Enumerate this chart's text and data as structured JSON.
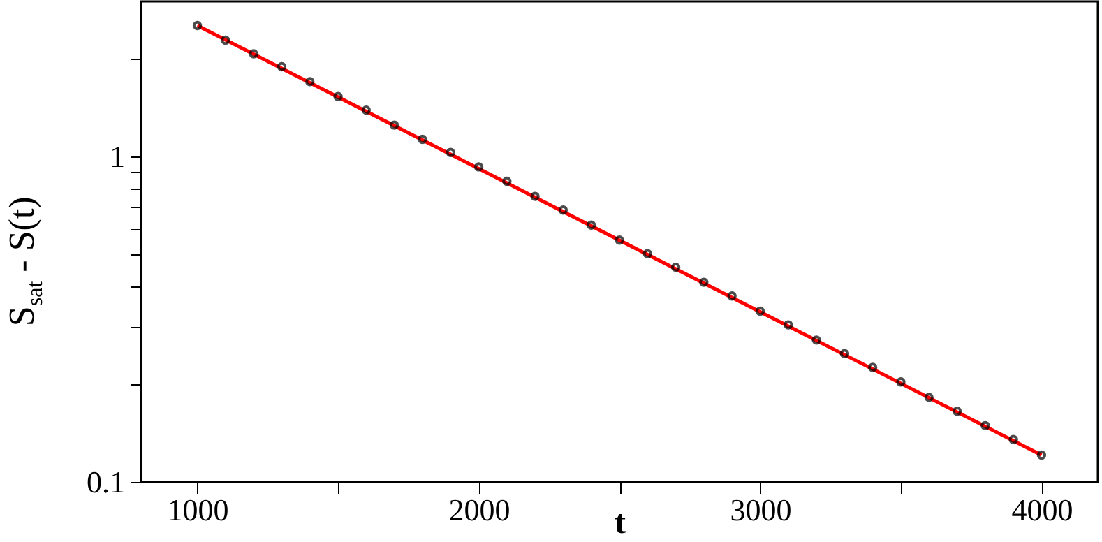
{
  "chart_data": {
    "type": "scatter",
    "xlabel": "t",
    "ylabel": "S$_{sat}$ - S(t)",
    "log": "y",
    "grid": false,
    "xlim": [
      800,
      4200
    ],
    "xticks": [
      1000,
      {
        "value": 1500,
        "label": null
      },
      2000,
      {
        "value": 2500,
        "label": null
      },
      3000,
      {
        "value": 3500,
        "label": null
      },
      4000
    ],
    "ylim": [
      0.1,
      3
    ],
    "yticks": [
      {
        "value": 0.1,
        "label": "0.1"
      },
      {
        "value": 0.2,
        "label": null
      },
      {
        "value": 0.3,
        "label": null
      },
      {
        "value": 0.4,
        "label": null
      },
      {
        "value": 0.5,
        "label": null
      },
      {
        "value": 0.6,
        "label": null
      },
      {
        "value": 0.7,
        "label": null
      },
      {
        "value": 0.8,
        "label": null
      },
      {
        "value": 0.9,
        "label": null
      },
      1,
      {
        "value": 2,
        "label": null
      }
    ],
    "series": [
      {
        "color": "#000000",
        "marker": "circle",
        "x": [
          1000,
          1100,
          1200,
          1300,
          1400,
          1500,
          1600,
          1700,
          1800,
          1900,
          2000,
          2100,
          2200,
          2300,
          2400,
          2500,
          2600,
          2700,
          2800,
          2900,
          3000,
          3100,
          3200,
          3300,
          3400,
          3500,
          3600,
          3700,
          3800,
          3900,
          4000
        ],
        "values": [
          2.53,
          2.28,
          2.07,
          1.89,
          1.7,
          1.53,
          1.39,
          1.25,
          1.13,
          1.03,
          0.93,
          0.84,
          0.755,
          0.685,
          0.616,
          0.554,
          0.503,
          0.457,
          0.411,
          0.373,
          0.335,
          0.304,
          0.273,
          0.248,
          0.225,
          0.203,
          0.182,
          0.165,
          0.149,
          0.135,
          0.121
        ]
      },
      {
        "type": "line",
        "color": "#ff0000",
        "line_style": "solid",
        "x": [
          1000,
          4000
        ],
        "values": [
          2.53,
          0.121
        ]
      }
    ]
  }
}
